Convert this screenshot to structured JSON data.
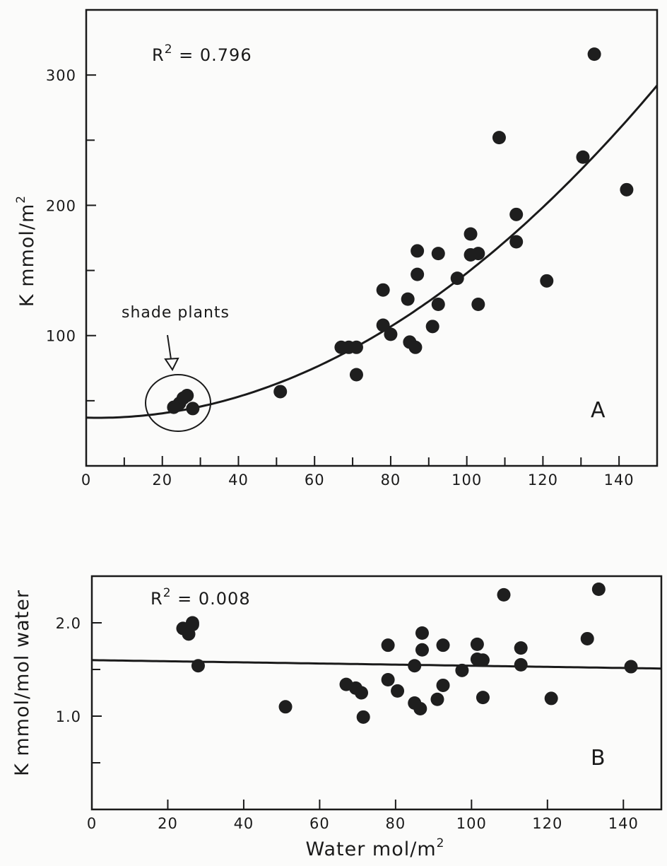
{
  "chart_data": [
    {
      "type": "scatter",
      "panel": "A",
      "r2_prefix": "R",
      "r2_sup": "2",
      "r2_value": " = 0.796",
      "ylabel": "K mmol/m",
      "ylabel_sup": "2",
      "xlim": [
        0,
        150
      ],
      "ylim": [
        0,
        350
      ],
      "x_ticks": [
        0,
        20,
        40,
        60,
        80,
        100,
        120,
        140
      ],
      "x_minor_ticks": [
        10,
        30,
        50,
        70,
        90,
        110,
        130
      ],
      "y_ticks": [
        100,
        200,
        300
      ],
      "y_minor_ticks": [
        50,
        150,
        250
      ],
      "annotation": "shade plants",
      "fit": {
        "kind": "quadratic",
        "coefficients": [
          37.0,
          -0.07,
          0.0118
        ]
      },
      "points": [
        {
          "x": 23,
          "y": 45
        },
        {
          "x": 24.5,
          "y": 48
        },
        {
          "x": 25.5,
          "y": 52
        },
        {
          "x": 26.5,
          "y": 54
        },
        {
          "x": 28,
          "y": 44
        },
        {
          "x": 51,
          "y": 57
        },
        {
          "x": 67,
          "y": 91
        },
        {
          "x": 69,
          "y": 91
        },
        {
          "x": 71,
          "y": 91
        },
        {
          "x": 71,
          "y": 70
        },
        {
          "x": 78,
          "y": 135
        },
        {
          "x": 78,
          "y": 108
        },
        {
          "x": 80,
          "y": 101
        },
        {
          "x": 84.5,
          "y": 128
        },
        {
          "x": 85,
          "y": 95
        },
        {
          "x": 86.5,
          "y": 91
        },
        {
          "x": 87,
          "y": 165
        },
        {
          "x": 87,
          "y": 147
        },
        {
          "x": 91,
          "y": 107
        },
        {
          "x": 92.5,
          "y": 163
        },
        {
          "x": 92.5,
          "y": 124
        },
        {
          "x": 97.5,
          "y": 144
        },
        {
          "x": 101,
          "y": 178
        },
        {
          "x": 101,
          "y": 162
        },
        {
          "x": 103,
          "y": 163
        },
        {
          "x": 103,
          "y": 124
        },
        {
          "x": 108.5,
          "y": 252
        },
        {
          "x": 113,
          "y": 193
        },
        {
          "x": 113,
          "y": 172
        },
        {
          "x": 121,
          "y": 142
        },
        {
          "x": 130.5,
          "y": 237
        },
        {
          "x": 133.5,
          "y": 316
        },
        {
          "x": 142,
          "y": 212
        }
      ]
    },
    {
      "type": "scatter",
      "panel": "B",
      "r2_prefix": "R",
      "r2_sup": "2",
      "r2_value": " = 0.008",
      "xlabel": "Water mol/m",
      "xlabel_sup": "2",
      "ylabel": "K mmol/mol water",
      "xlim": [
        0,
        150
      ],
      "ylim": [
        0,
        2.5
      ],
      "x_ticks": [
        0,
        20,
        40,
        60,
        80,
        100,
        120,
        140
      ],
      "y_ticks": [
        "1.0",
        "2.0"
      ],
      "y_minor_ticks": [
        0.5,
        1.5
      ],
      "fit": {
        "kind": "linear",
        "coefficients": [
          1.6,
          -0.0006
        ]
      },
      "points": [
        {
          "x": 24,
          "y": 1.94
        },
        {
          "x": 25.5,
          "y": 1.88
        },
        {
          "x": 26.5,
          "y": 2.0
        },
        {
          "x": 26.5,
          "y": 1.98
        },
        {
          "x": 28,
          "y": 1.54
        },
        {
          "x": 51,
          "y": 1.1
        },
        {
          "x": 67,
          "y": 1.34
        },
        {
          "x": 69.5,
          "y": 1.3
        },
        {
          "x": 71,
          "y": 1.25
        },
        {
          "x": 71.5,
          "y": 0.99
        },
        {
          "x": 78,
          "y": 1.76
        },
        {
          "x": 78,
          "y": 1.39
        },
        {
          "x": 80.5,
          "y": 1.27
        },
        {
          "x": 85,
          "y": 1.54
        },
        {
          "x": 85,
          "y": 1.14
        },
        {
          "x": 86.5,
          "y": 1.08
        },
        {
          "x": 87,
          "y": 1.89
        },
        {
          "x": 87,
          "y": 1.71
        },
        {
          "x": 91,
          "y": 1.18
        },
        {
          "x": 92.5,
          "y": 1.76
        },
        {
          "x": 92.5,
          "y": 1.33
        },
        {
          "x": 97.5,
          "y": 1.49
        },
        {
          "x": 101.5,
          "y": 1.77
        },
        {
          "x": 101.5,
          "y": 1.61
        },
        {
          "x": 103,
          "y": 1.6
        },
        {
          "x": 103,
          "y": 1.2
        },
        {
          "x": 108.5,
          "y": 2.3
        },
        {
          "x": 113,
          "y": 1.73
        },
        {
          "x": 113,
          "y": 1.55
        },
        {
          "x": 121,
          "y": 1.19
        },
        {
          "x": 130.5,
          "y": 1.83
        },
        {
          "x": 133.5,
          "y": 2.36
        },
        {
          "x": 142,
          "y": 1.53
        }
      ]
    }
  ]
}
